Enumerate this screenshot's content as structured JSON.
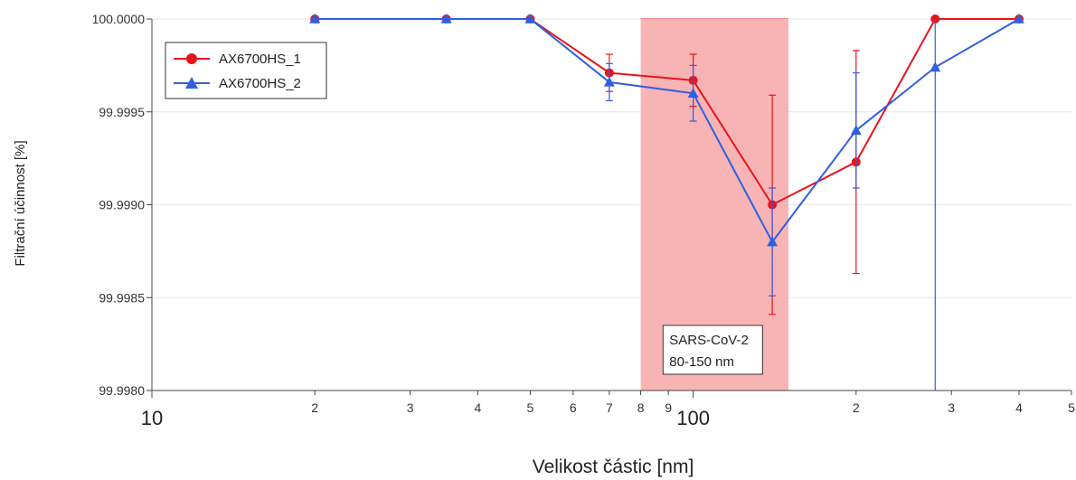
{
  "chart_data": {
    "type": "line",
    "xlabel": "Velikost částic [nm]",
    "ylabel": "Filtrační účinnost [%]",
    "x_scale": "log",
    "xlim": [
      10,
      500
    ],
    "ylim": [
      99.998,
      100.0
    ],
    "x_ticks": [
      {
        "value": 10,
        "label": "10",
        "major": true
      },
      {
        "value": 20,
        "label": "2"
      },
      {
        "value": 30,
        "label": "3"
      },
      {
        "value": 40,
        "label": "4"
      },
      {
        "value": 50,
        "label": "5"
      },
      {
        "value": 60,
        "label": "6"
      },
      {
        "value": 70,
        "label": "7"
      },
      {
        "value": 80,
        "label": "8"
      },
      {
        "value": 90,
        "label": "9"
      },
      {
        "value": 100,
        "label": "100",
        "major": true
      },
      {
        "value": 200,
        "label": "2"
      },
      {
        "value": 300,
        "label": "3"
      },
      {
        "value": 400,
        "label": "4"
      },
      {
        "value": 500,
        "label": "5"
      }
    ],
    "y_ticks": [
      {
        "value": 100.0,
        "label": "100.0000"
      },
      {
        "value": 99.9995,
        "label": "99.9995"
      },
      {
        "value": 99.999,
        "label": "99.9990"
      },
      {
        "value": 99.9985,
        "label": "99.9985"
      },
      {
        "value": 99.998,
        "label": "99.9980"
      }
    ],
    "grid": true,
    "legend_position": "top-left",
    "series": [
      {
        "name": "AX6700HS_1",
        "color": "#e8141c",
        "marker": "circle",
        "points": [
          {
            "x": 20,
            "y": 100.0
          },
          {
            "x": 35,
            "y": 100.0
          },
          {
            "x": 50,
            "y": 100.0
          },
          {
            "x": 70,
            "y": 99.99971,
            "err": 0.0001
          },
          {
            "x": 100,
            "y": 99.99967,
            "err": 0.00014
          },
          {
            "x": 140,
            "y": 99.999,
            "err": 0.00059
          },
          {
            "x": 200,
            "y": 99.99923,
            "err": 0.0006
          },
          {
            "x": 280,
            "y": 100.0
          },
          {
            "x": 400,
            "y": 100.0
          }
        ]
      },
      {
        "name": "AX6700HS_2",
        "color": "#2f5fe0",
        "marker": "triangle",
        "points": [
          {
            "x": 20,
            "y": 100.0
          },
          {
            "x": 35,
            "y": 100.0
          },
          {
            "x": 50,
            "y": 100.0
          },
          {
            "x": 70,
            "y": 99.99966,
            "err": 0.0001
          },
          {
            "x": 100,
            "y": 99.9996,
            "err": 0.00015
          },
          {
            "x": 140,
            "y": 99.9988,
            "err": 0.00029
          },
          {
            "x": 200,
            "y": 99.9994,
            "err": 0.00031
          },
          {
            "x": 280,
            "y": 99.99974,
            "err": 0.00194
          },
          {
            "x": 400,
            "y": 100.0
          }
        ]
      }
    ],
    "highlight": {
      "x_from": 80,
      "x_to": 150,
      "color": "#f8b4b4",
      "label_lines": [
        "SARS-CoV-2",
        "80-150 nm"
      ]
    }
  }
}
